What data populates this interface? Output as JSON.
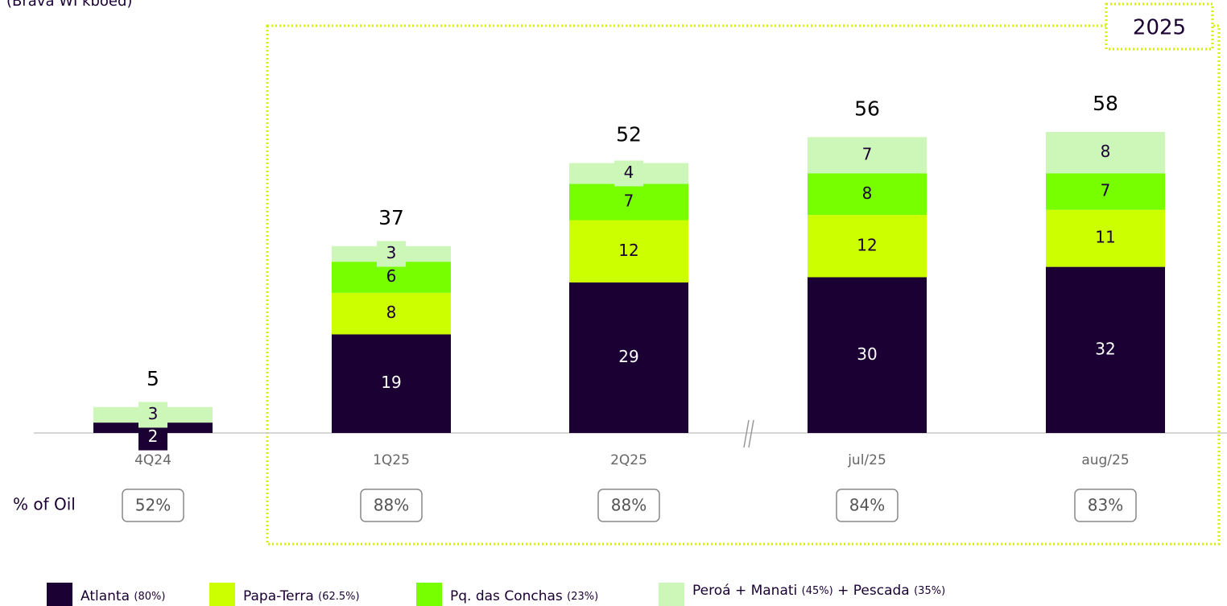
{
  "chart_data": {
    "type": "stacked_bar",
    "subtitle": "(Brava WI kboed)",
    "annotation": "2025",
    "categories": [
      "4Q24",
      "1Q25",
      "2Q25",
      "jul/25",
      "aug/25"
    ],
    "series": [
      {
        "name": "Atlanta (80%)",
        "color": "#1a0033",
        "values": [
          2,
          19,
          29,
          30,
          32
        ]
      },
      {
        "name": "Papa-Terra (62.5%)",
        "color": "#ccff00",
        "values": [
          null,
          8,
          12,
          12,
          11
        ]
      },
      {
        "name": "Pq. das Conchas (23%)",
        "color": "#77ff00",
        "values": [
          null,
          6,
          7,
          8,
          7
        ]
      },
      {
        "name": "Peroá + Manati (45%) + Pescada (35%)",
        "color": "#ccf7b8",
        "values": [
          3,
          3,
          4,
          7,
          8
        ]
      }
    ],
    "totals": [
      5,
      37,
      52,
      56,
      58
    ],
    "oil_share": {
      "label": "% of Oil",
      "values": [
        52,
        88,
        88,
        84,
        83
      ],
      "value_labels": [
        "52%",
        "88%",
        "88%",
        "84%",
        "83%"
      ]
    },
    "ylim": [
      0,
      60
    ]
  }
}
